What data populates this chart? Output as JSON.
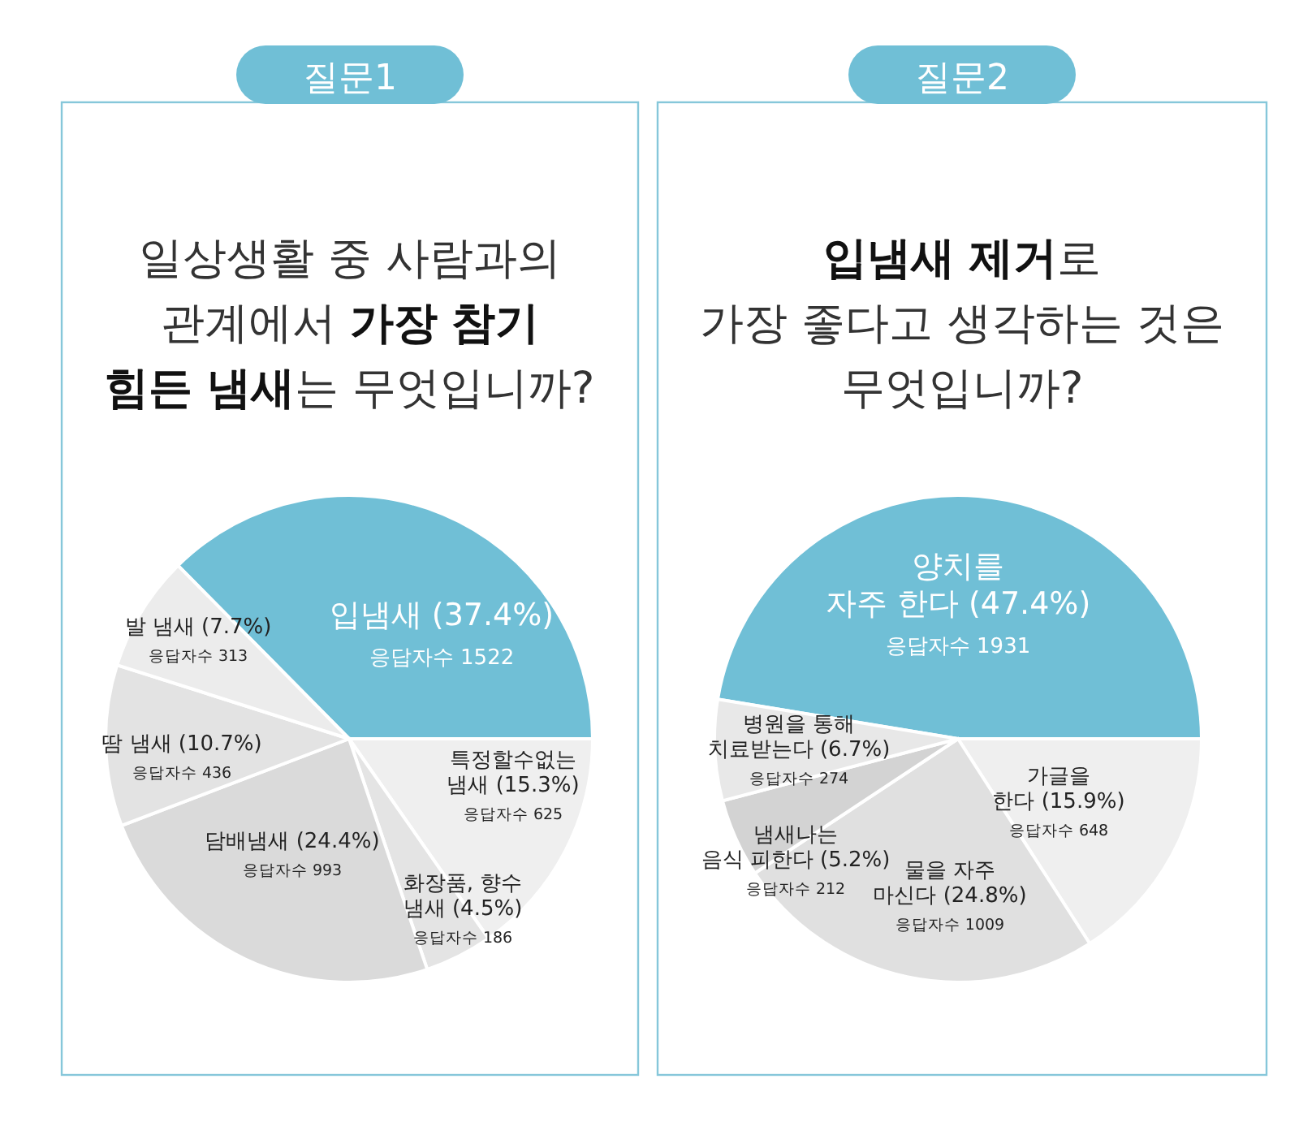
{
  "chart_data": [
    {
      "type": "pie",
      "title": "질문1",
      "subtitle": "일상생활 중 사람과의 관계에서 **가장 참기 힘든 냄새**는 무엇입니까?",
      "categories": [
        "입냄새",
        "특정할수없는 냄새",
        "화장품, 향수 냄새",
        "담배냄새",
        "땀 냄새",
        "발 냄새"
      ],
      "values": [
        37.4,
        15.3,
        4.5,
        24.4,
        10.7,
        7.7
      ],
      "value_labels": [
        "(37.4%)",
        "(15.3%)",
        "(4.5%)",
        "(24.4%)",
        "(10.7%)",
        "(7.7%)"
      ],
      "colors": [
        "#70bfd6",
        "#efefef",
        "#e4e4e4",
        "#dadada",
        "#e3e3e3",
        "#ececec"
      ],
      "annotations": [
        "응답자수 1522",
        "응답자수 625",
        "응답자수 186",
        "응답자수 993",
        "응답자수 436",
        "응답자수 313"
      ]
    },
    {
      "type": "pie",
      "title": "질문2",
      "subtitle": "**입냄새 제거**로 가장 좋다고 생각하는 것은 무엇입니까?",
      "categories": [
        "양치를 자주 한다",
        "가글을 한다",
        "물을 자주 마신다",
        "냄새나는 음식 피한다",
        "병원을 통해 치료받는다"
      ],
      "values": [
        47.4,
        15.9,
        24.8,
        5.2,
        6.7
      ],
      "value_labels": [
        "(47.4%)",
        "(15.9%)",
        "(24.8%)",
        "(5.2%)",
        "(6.7%)"
      ],
      "colors": [
        "#70bfd6",
        "#efefef",
        "#e0e0e0",
        "#d3d3d3",
        "#e8e8e8"
      ],
      "annotations": [
        "응답자수 1931",
        "응답자수 648",
        "응답자수 1009",
        "응답자수 212",
        "응답자수 274"
      ]
    }
  ]
}
